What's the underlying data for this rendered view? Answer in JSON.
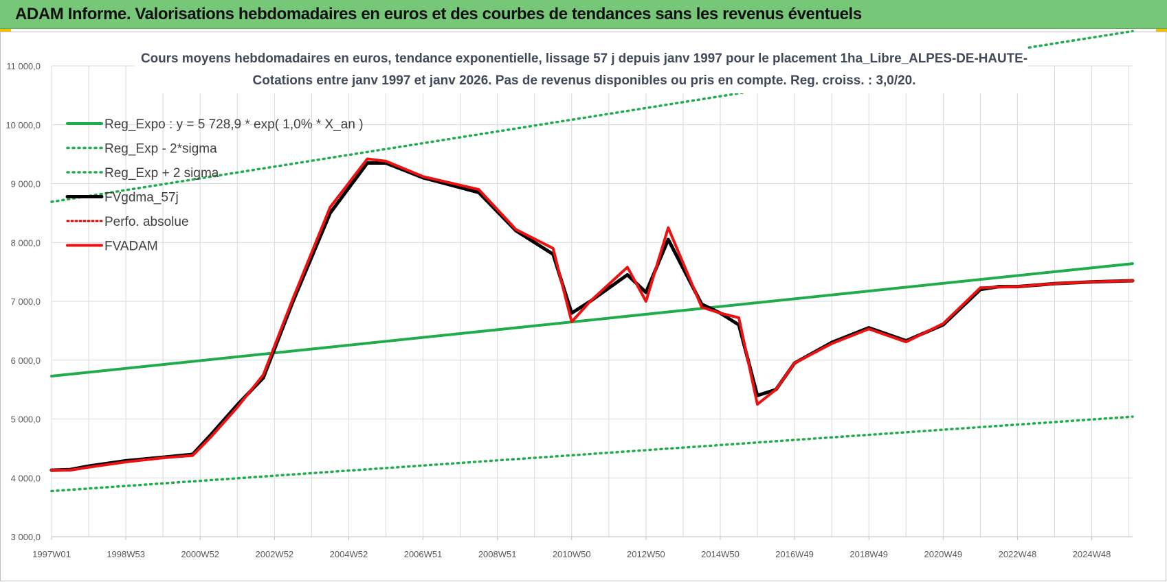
{
  "banner": {
    "title": "ADAM Informe. Valorisations hebdomadaires en euros et des courbes de tendances sans les revenus éventuels"
  },
  "colors": {
    "banner_bg": "#77c779",
    "reg_green": "#1fac4b",
    "fvgdma_black": "#000000",
    "fvadam_red": "#ee1111",
    "perfo_red": "#dd0000",
    "grid": "#d9d9d9"
  },
  "chart_data": {
    "type": "line",
    "title": "Cours moyens hebdomadaires en euros, tendance exponentielle, lissage 57 j depuis janv 1997 pour le placement 1ha_Libre_ALPES-DE-HAUTE-",
    "subtitle": "Cotations entre janv 1997 et janv 2026. Pas de revenus disponibles ou pris en compte. Reg. croiss. : 3,0/20.",
    "xlabel": "",
    "ylabel": "",
    "ylim": [
      3000,
      11000
    ],
    "yticks": [
      "3 000,0",
      "4 000,0",
      "5 000,0",
      "6 000,0",
      "7 000,0",
      "8 000,0",
      "9 000,0",
      "10 000,0",
      "11 000,0"
    ],
    "xlim": [
      1997.0,
      2026.1
    ],
    "xticks": [
      {
        "label": "1997W01",
        "x": 1997.0
      },
      {
        "label": "1998W53",
        "x": 1999.0
      },
      {
        "label": "2000W52",
        "x": 2001.0
      },
      {
        "label": "2002W52",
        "x": 2003.0
      },
      {
        "label": "2004W52",
        "x": 2005.0
      },
      {
        "label": "2006W51",
        "x": 2007.0
      },
      {
        "label": "2008W51",
        "x": 2009.0
      },
      {
        "label": "2010W50",
        "x": 2011.0
      },
      {
        "label": "2012W50",
        "x": 2013.0
      },
      {
        "label": "2014W50",
        "x": 2015.0
      },
      {
        "label": "2016W49",
        "x": 2017.0
      },
      {
        "label": "2018W49",
        "x": 2019.0
      },
      {
        "label": "2020W49",
        "x": 2021.0
      },
      {
        "label": "2022W48",
        "x": 2023.0
      },
      {
        "label": "2024W48",
        "x": 2025.0
      }
    ],
    "grid": true,
    "legend_position": "top-left",
    "series": [
      {
        "name": "Reg_Expo : y = 5 728,9 * exp( 1,0% *  X_an )",
        "style": "solid",
        "color": "#1fac4b",
        "x": [
          1997.0,
          2026.1
        ],
        "y": [
          5729,
          7640
        ]
      },
      {
        "name": "Reg_Exp - 2*sigma",
        "style": "dotted",
        "color": "#1fac4b",
        "x": [
          1997.0,
          2026.1
        ],
        "y": [
          3775,
          5040
        ]
      },
      {
        "name": "Reg_Exp + 2 sigma",
        "style": "dotted",
        "color": "#1fac4b",
        "x": [
          1997.0,
          2026.1
        ],
        "y": [
          8690,
          11590
        ]
      },
      {
        "name": "FVgdma_57j",
        "style": "solid",
        "color": "#000000",
        "x": [
          1997.0,
          1997.5,
          1998.0,
          1999.0,
          2000.0,
          2000.8,
          2001.3,
          2002.0,
          2002.7,
          2003.5,
          2004.5,
          2005.5,
          2006.0,
          2007.0,
          2008.5,
          2009.5,
          2010.5,
          2011.0,
          2011.5,
          2012.5,
          2013.0,
          2013.6,
          2014.5,
          2015.0,
          2015.5,
          2016.0,
          2016.5,
          2017.0,
          2018.0,
          2019.0,
          2020.0,
          2021.0,
          2022.0,
          2022.5,
          2023.0,
          2024.0,
          2025.0,
          2026.1
        ],
        "y": [
          4130,
          4140,
          4200,
          4290,
          4350,
          4400,
          4740,
          5240,
          5700,
          7000,
          8500,
          9350,
          9350,
          9100,
          8850,
          8200,
          7800,
          6800,
          7000,
          7450,
          7150,
          8050,
          6950,
          6800,
          6600,
          5400,
          5500,
          5950,
          6300,
          6550,
          6330,
          6600,
          7200,
          7250,
          7250,
          7300,
          7330,
          7350
        ]
      },
      {
        "name": "Perfo. absolue",
        "style": "dotted",
        "color": "#dd0000",
        "x": [
          1997.0,
          1997.5,
          1998.0,
          1999.0,
          2000.0,
          2000.8,
          2001.3,
          2002.0,
          2002.7,
          2003.5,
          2004.5,
          2005.5,
          2006.0,
          2007.0,
          2008.5,
          2009.5,
          2010.5,
          2011.0,
          2011.5,
          2012.5,
          2013.0,
          2013.6,
          2014.5,
          2015.0,
          2015.5,
          2016.0,
          2016.5,
          2017.0,
          2018.0,
          2019.0,
          2020.0,
          2021.0,
          2022.0,
          2022.5,
          2023.0,
          2024.0,
          2025.0,
          2026.1
        ],
        "y": [
          4130,
          4130,
          4180,
          4270,
          4340,
          4380,
          4700,
          5200,
          5750,
          7050,
          8600,
          9420,
          9380,
          9120,
          8900,
          8220,
          7900,
          6650,
          7000,
          7580,
          7000,
          8250,
          6900,
          6800,
          6720,
          5250,
          5500,
          5950,
          6280,
          6530,
          6310,
          6620,
          7230,
          7240,
          7250,
          7300,
          7330,
          7350
        ]
      },
      {
        "name": "FVADAM",
        "style": "solid",
        "color": "#ee1111",
        "x": [
          1997.0,
          1997.5,
          1998.0,
          1999.0,
          2000.0,
          2000.8,
          2001.3,
          2002.0,
          2002.7,
          2003.5,
          2004.5,
          2005.5,
          2006.0,
          2007.0,
          2008.5,
          2009.5,
          2010.5,
          2011.0,
          2011.5,
          2012.5,
          2013.0,
          2013.6,
          2014.5,
          2015.0,
          2015.5,
          2016.0,
          2016.5,
          2017.0,
          2018.0,
          2019.0,
          2020.0,
          2021.0,
          2022.0,
          2022.5,
          2023.0,
          2024.0,
          2025.0,
          2026.1
        ],
        "y": [
          4130,
          4130,
          4180,
          4270,
          4340,
          4380,
          4700,
          5200,
          5750,
          7050,
          8600,
          9420,
          9380,
          9120,
          8900,
          8220,
          7900,
          6650,
          7000,
          7580,
          7000,
          8250,
          6900,
          6800,
          6720,
          5250,
          5500,
          5950,
          6280,
          6530,
          6310,
          6620,
          7230,
          7240,
          7250,
          7300,
          7330,
          7350
        ]
      }
    ]
  }
}
